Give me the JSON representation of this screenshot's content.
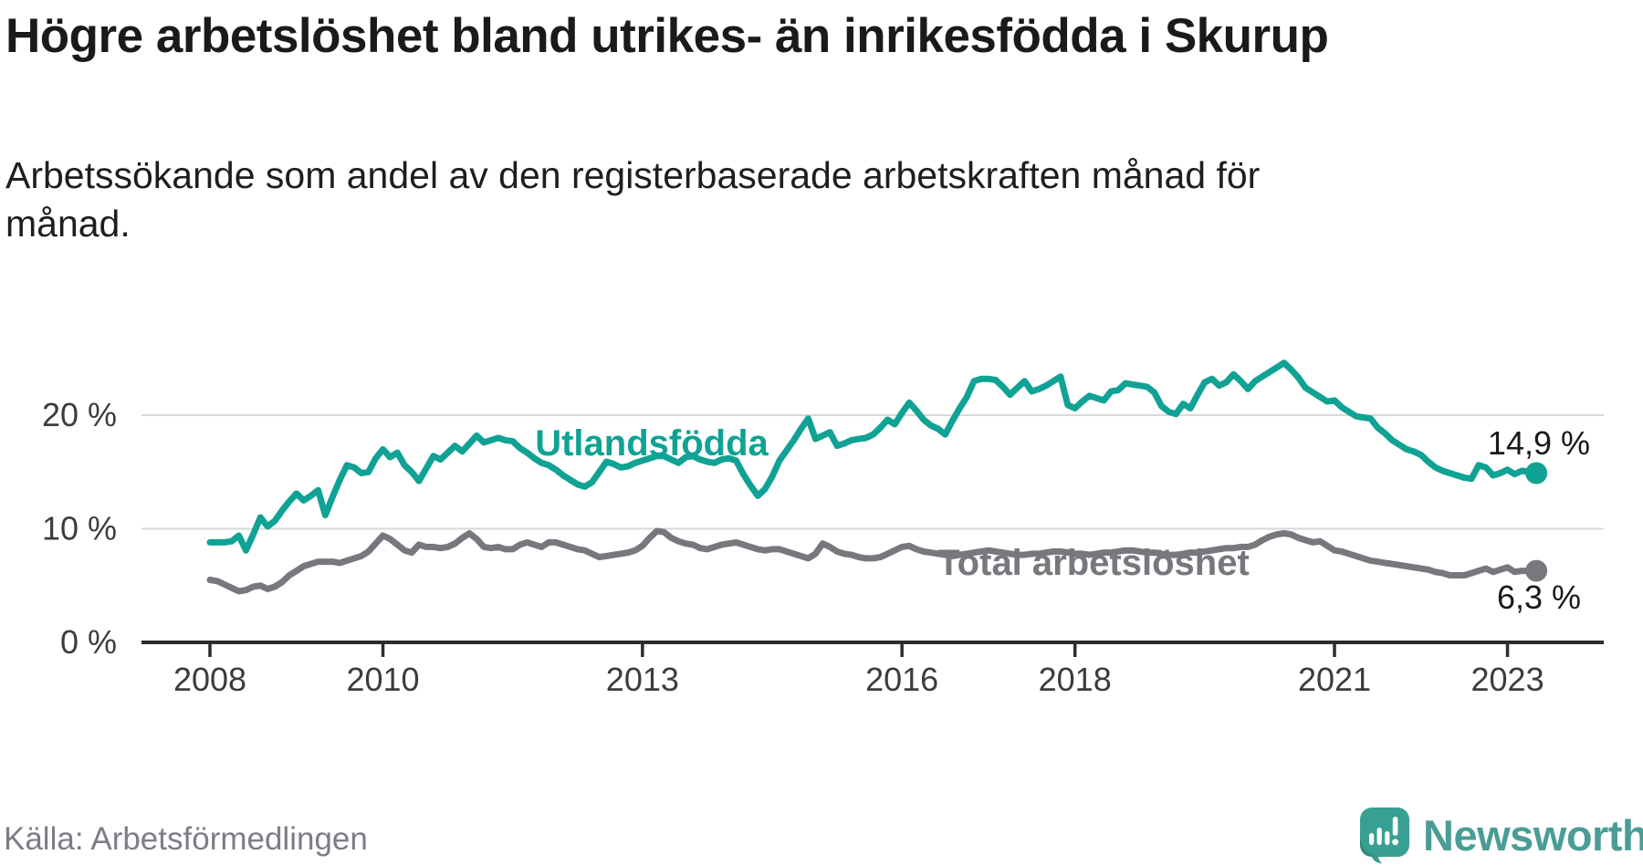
{
  "header": {
    "title": "Högre arbetslöshet bland utrikes- än inrikesfödda i Skurup",
    "subtitle": "Arbetssökande som andel av den registerbaserade arbetskraften månad för månad."
  },
  "chart": {
    "series_labels": {
      "utlandsfodda": "Utlandsfödda",
      "total": "Total arbetslöshet"
    },
    "annotations": {
      "utlandsfodda_end": "14,9 %",
      "total_end": "6,3 %"
    },
    "y_axis": {
      "ticks": [
        {
          "label": "0 %",
          "value": 0
        },
        {
          "label": "10 %",
          "value": 10
        },
        {
          "label": "20 %",
          "value": 20
        }
      ]
    },
    "x_axis": {
      "ticks": [
        {
          "label": "2008",
          "year": 2008
        },
        {
          "label": "2010",
          "year": 2010
        },
        {
          "label": "2013",
          "year": 2013
        },
        {
          "label": "2016",
          "year": 2016
        },
        {
          "label": "2018",
          "year": 2018
        },
        {
          "label": "2021",
          "year": 2021
        },
        {
          "label": "2023",
          "year": 2023
        }
      ]
    }
  },
  "chart_data": {
    "type": "line",
    "unit": "%",
    "x_unit": "decimal_year",
    "start": 2008.0,
    "interval": "monthly",
    "xlim": [
      2007.2,
      2024.1
    ],
    "ylim": [
      0,
      26
    ],
    "grid": "horizontal",
    "legend_position": "inline-labels",
    "end_values": {
      "Utlandsfödda": 14.9,
      "Total arbetslöshet": 6.3
    },
    "colors": {
      "utlandsfodda": "#10a294",
      "total": "#77777d",
      "grid": "#d9d9d9",
      "axis": "#2d2d2d"
    },
    "series": [
      {
        "name": "Utlandsfödda",
        "color": "#10a294",
        "values": [
          8.8,
          8.8,
          8.8,
          8.9,
          9.4,
          8.1,
          9.5,
          11.0,
          10.2,
          10.7,
          11.6,
          12.4,
          13.1,
          12.5,
          12.9,
          13.4,
          11.2,
          12.8,
          14.3,
          15.6,
          15.4,
          14.9,
          15.0,
          16.2,
          17.0,
          16.3,
          16.7,
          15.6,
          15.0,
          14.2,
          15.3,
          16.4,
          16.1,
          16.7,
          17.3,
          16.8,
          17.5,
          18.2,
          17.6,
          17.8,
          18.0,
          17.8,
          17.7,
          17.1,
          16.7,
          16.2,
          15.8,
          15.6,
          15.2,
          14.7,
          14.3,
          13.9,
          13.7,
          14.1,
          15.0,
          15.9,
          15.7,
          15.4,
          15.5,
          15.8,
          16.0,
          16.2,
          16.4,
          16.4,
          16.1,
          15.8,
          16.3,
          16.4,
          16.1,
          15.9,
          15.8,
          16.1,
          16.2,
          16.0,
          14.8,
          13.8,
          12.9,
          13.5,
          14.6,
          16.0,
          16.9,
          17.8,
          18.8,
          19.7,
          17.9,
          18.2,
          18.5,
          17.3,
          17.5,
          17.8,
          17.9,
          18.0,
          18.3,
          18.9,
          19.6,
          19.2,
          20.2,
          21.1,
          20.4,
          19.6,
          19.1,
          18.8,
          18.3,
          19.5,
          20.6,
          21.6,
          23.0,
          23.2,
          23.2,
          23.1,
          22.5,
          21.8,
          22.4,
          23.0,
          22.1,
          22.3,
          22.6,
          23.0,
          23.4,
          20.9,
          20.6,
          21.2,
          21.7,
          21.5,
          21.3,
          22.1,
          22.2,
          22.8,
          22.7,
          22.6,
          22.5,
          22.0,
          20.8,
          20.3,
          20.1,
          21.0,
          20.6,
          21.8,
          22.9,
          23.2,
          22.6,
          22.9,
          23.6,
          23.0,
          22.3,
          23.0,
          23.4,
          23.8,
          24.2,
          24.6,
          24.0,
          23.3,
          22.4,
          22.0,
          21.6,
          21.2,
          21.3,
          20.7,
          20.3,
          19.9,
          19.8,
          19.7,
          18.9,
          18.4,
          17.8,
          17.4,
          17.0,
          16.8,
          16.5,
          15.9,
          15.4,
          15.1,
          14.9,
          14.7,
          14.5,
          14.4,
          15.6,
          15.4,
          14.7,
          14.9,
          15.2,
          14.8,
          15.1,
          15.0,
          14.9
        ]
      },
      {
        "name": "Total arbetslöshet",
        "color": "#77777d",
        "values": [
          5.5,
          5.4,
          5.1,
          4.8,
          4.5,
          4.6,
          4.9,
          5.0,
          4.7,
          4.9,
          5.3,
          5.9,
          6.3,
          6.7,
          6.9,
          7.1,
          7.1,
          7.1,
          7.0,
          7.2,
          7.4,
          7.6,
          8.0,
          8.7,
          9.4,
          9.1,
          8.6,
          8.1,
          7.9,
          8.6,
          8.4,
          8.4,
          8.3,
          8.4,
          8.7,
          9.2,
          9.6,
          9.1,
          8.4,
          8.3,
          8.4,
          8.2,
          8.2,
          8.6,
          8.8,
          8.6,
          8.4,
          8.8,
          8.8,
          8.6,
          8.4,
          8.2,
          8.1,
          7.8,
          7.5,
          7.6,
          7.7,
          7.8,
          7.9,
          8.1,
          8.5,
          9.2,
          9.8,
          9.7,
          9.2,
          8.9,
          8.7,
          8.6,
          8.3,
          8.2,
          8.4,
          8.6,
          8.7,
          8.8,
          8.6,
          8.4,
          8.2,
          8.1,
          8.2,
          8.2,
          8.0,
          7.8,
          7.6,
          7.4,
          7.8,
          8.7,
          8.4,
          8.0,
          7.8,
          7.7,
          7.5,
          7.4,
          7.4,
          7.5,
          7.8,
          8.1,
          8.4,
          8.5,
          8.2,
          8.0,
          7.9,
          7.8,
          7.7,
          7.6,
          7.7,
          7.8,
          7.9,
          8.0,
          8.1,
          8.0,
          7.9,
          7.8,
          7.7,
          7.7,
          7.8,
          7.8,
          7.9,
          8.0,
          8.0,
          7.9,
          7.8,
          7.8,
          7.7,
          7.8,
          7.9,
          7.9,
          8.0,
          8.1,
          8.1,
          8.0,
          7.9,
          7.9,
          7.8,
          7.7,
          7.7,
          7.8,
          7.9,
          7.9,
          8.0,
          8.1,
          8.2,
          8.3,
          8.3,
          8.4,
          8.4,
          8.6,
          9.0,
          9.3,
          9.5,
          9.6,
          9.5,
          9.2,
          9.0,
          8.8,
          8.9,
          8.5,
          8.1,
          8.0,
          7.8,
          7.6,
          7.4,
          7.2,
          7.1,
          7.0,
          6.9,
          6.8,
          6.7,
          6.6,
          6.5,
          6.4,
          6.2,
          6.1,
          5.9,
          5.9,
          5.9,
          6.1,
          6.3,
          6.5,
          6.2,
          6.4,
          6.6,
          6.2,
          6.3,
          6.3,
          6.3
        ]
      }
    ]
  },
  "footer": {
    "source": "Källa: Arbetsförmedlingen",
    "brand": "Newsworthy"
  }
}
